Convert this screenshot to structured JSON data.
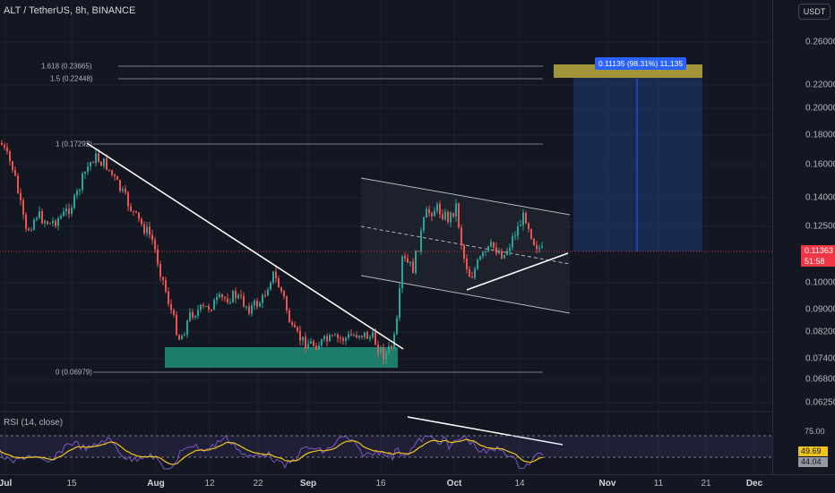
{
  "header": {
    "symbol_label": "ALT / TetherUS, 8h, BINANCE",
    "currency_button": "USDT"
  },
  "price_axis": {
    "ticks": [
      {
        "value": 0.26,
        "label": "0.26000"
      },
      {
        "value": 0.22,
        "label": "0.22000"
      },
      {
        "value": 0.2,
        "label": "0.20000"
      },
      {
        "value": 0.18,
        "label": "0.18000"
      },
      {
        "value": 0.16,
        "label": "0.16000"
      },
      {
        "value": 0.14,
        "label": "0.14000"
      },
      {
        "value": 0.125,
        "label": "0.12500"
      },
      {
        "value": 0.1,
        "label": "0.10000"
      },
      {
        "value": 0.09,
        "label": "0.09000"
      },
      {
        "value": 0.082,
        "label": "0.08200"
      },
      {
        "value": 0.074,
        "label": "0.07400"
      },
      {
        "value": 0.068,
        "label": "0.06800"
      },
      {
        "value": 0.0625,
        "label": "0.06250"
      }
    ],
    "current_price": "0.11363",
    "countdown": "51:58"
  },
  "time_axis": {
    "ticks": [
      {
        "label": "Jul",
        "bold": true
      },
      {
        "label": "15",
        "bold": false
      },
      {
        "label": "Aug",
        "bold": true
      },
      {
        "label": "12",
        "bold": false
      },
      {
        "label": "22",
        "bold": false
      },
      {
        "label": "Sep",
        "bold": true
      },
      {
        "label": "16",
        "bold": false
      },
      {
        "label": "Oct",
        "bold": true
      },
      {
        "label": "14",
        "bold": false
      },
      {
        "label": "Nov",
        "bold": true
      },
      {
        "label": "11",
        "bold": false
      },
      {
        "label": "21",
        "bold": false
      },
      {
        "label": "Dec",
        "bold": true
      }
    ]
  },
  "fib_levels": [
    {
      "label": "1.618 (0.23665)",
      "value": 0.23665
    },
    {
      "label": "1.5 (0.22448)",
      "value": 0.22448
    },
    {
      "label": "1 (0.17292)",
      "value": 0.17292
    },
    {
      "label": "0 (0.06979)",
      "value": 0.06979
    }
  ],
  "target_measure": {
    "label": "0.11135 (98.31%) 11,135"
  },
  "rsi": {
    "label": "RSI (14, close)",
    "upper_level": "75.00",
    "value": "49.69",
    "ma_value": "44.04"
  },
  "colors": {
    "background": "#131722",
    "up": "#26a69a",
    "down": "#ef5350",
    "accent": "#2962ff",
    "target_zone": "#bcaa3c",
    "support_zone": "#1e8f7a",
    "rsi_line": "#7e57c2",
    "rsi_ma": "#f0c419"
  }
}
